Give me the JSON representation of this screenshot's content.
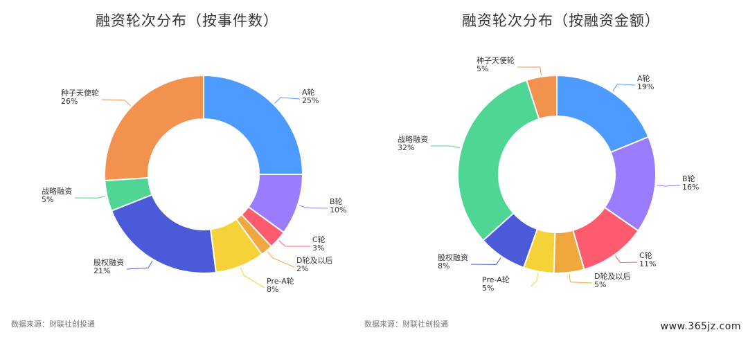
{
  "chart_data": [
    {
      "type": "pie",
      "title": "融资轮次分布（按事件数）",
      "source": "数据来源：财联社创投通",
      "categories": [
        "A轮",
        "B轮",
        "C轮",
        "D轮及以后",
        "Pre-A轮",
        "股权融资",
        "战略融资",
        "种子天使轮"
      ],
      "values": [
        25,
        10,
        3,
        2,
        8,
        21,
        5,
        26
      ],
      "value_labels": [
        "25%",
        "10%",
        "3%",
        "2%",
        "8%",
        "21%",
        "5%",
        "26%"
      ],
      "colors": [
        "#4e9bff",
        "#9b7cff",
        "#ff5b6e",
        "#f0a73d",
        "#f5d23a",
        "#4a5ad8",
        "#4fd694",
        "#f2924e"
      ]
    },
    {
      "type": "pie",
      "title": "融资轮次分布（按融资金额）",
      "source": "数据来源：财联社创投通",
      "categories": [
        "A轮",
        "B轮",
        "C轮",
        "D轮及以后",
        "Pre-A轮",
        "股权融资",
        "战略融资",
        "种子天使轮"
      ],
      "values": [
        19,
        16,
        11,
        5,
        5,
        8,
        32,
        5
      ],
      "value_labels": [
        "19%",
        "16%",
        "11%",
        "5%",
        "5%",
        "8%",
        "32%",
        "5%"
      ],
      "colors": [
        "#4e9bff",
        "#9b7cff",
        "#ff5b6e",
        "#f0a73d",
        "#f5d23a",
        "#4a5ad8",
        "#4fd694",
        "#f2924e"
      ]
    }
  ],
  "watermark": "www.365jz.com"
}
